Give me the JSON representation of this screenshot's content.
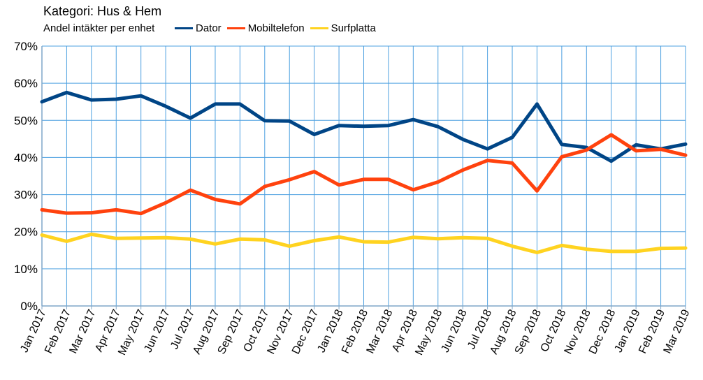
{
  "chart_data": {
    "type": "line",
    "title": "Kategori: Hus & Hem",
    "ylabel": "Andel intäkter per enhet",
    "ylim": [
      0,
      70
    ],
    "y_ticks": [
      "0%",
      "10%",
      "20%",
      "30%",
      "40%",
      "50%",
      "60%",
      "70%"
    ],
    "grid": true,
    "legend_placement": "top",
    "categories": [
      "Jan 2017",
      "Feb 2017",
      "Mar 2017",
      "Apr 2017",
      "May 2017",
      "Jun 2017",
      "Jul 2017",
      "Aug 2017",
      "Sep 2017",
      "Oct 2017",
      "Nov 2017",
      "Dec 2017",
      "Jan 2018",
      "Feb 2018",
      "Mar 2018",
      "Apr 2018",
      "May 2018",
      "Jun 2018",
      "Jul 2018",
      "Aug 2018",
      "Sep 2018",
      "Oct 2018",
      "Nov 2018",
      "Dec 2018",
      "Jan 2019",
      "Feb 2019",
      "Mar 2019"
    ],
    "series": [
      {
        "name": "Dator",
        "color": "#004586",
        "values": [
          55.0,
          57.5,
          55.5,
          55.7,
          56.6,
          53.8,
          50.6,
          54.4,
          54.4,
          49.9,
          49.8,
          46.2,
          48.6,
          48.4,
          48.6,
          50.2,
          48.3,
          44.9,
          42.3,
          45.4,
          54.4,
          43.5,
          42.7,
          39.0,
          43.4,
          42.3,
          43.6
        ]
      },
      {
        "name": "Mobiltelefon",
        "color": "#ff420e",
        "values": [
          25.9,
          25.0,
          25.1,
          25.9,
          24.9,
          27.8,
          31.2,
          28.7,
          27.5,
          32.2,
          34.0,
          36.2,
          32.6,
          34.1,
          34.1,
          31.3,
          33.4,
          36.6,
          39.2,
          38.5,
          31.0,
          40.2,
          42.0,
          46.1,
          41.8,
          42.2,
          40.6
        ]
      },
      {
        "name": "Surfplatta",
        "color": "#ffd320",
        "values": [
          19.1,
          17.4,
          19.3,
          18.2,
          18.3,
          18.4,
          18.0,
          16.7,
          18.0,
          17.8,
          16.1,
          17.6,
          18.6,
          17.3,
          17.2,
          18.5,
          18.1,
          18.4,
          18.2,
          16.1,
          14.4,
          16.3,
          15.3,
          14.7,
          14.7,
          15.5,
          15.6
        ]
      }
    ]
  },
  "colors": {
    "grid": "#4da0e0",
    "axis": "#7fa6c8"
  }
}
